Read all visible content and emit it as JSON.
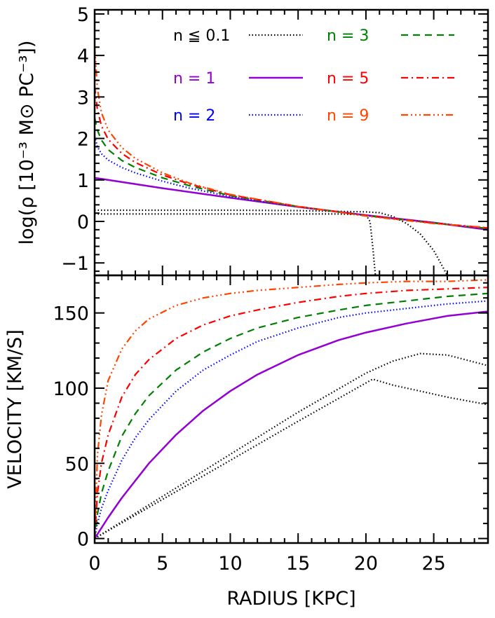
{
  "chart_data": [
    {
      "type": "line",
      "ylabel": "log(ρ [10⁻³ M⊙ PC⁻³])",
      "xlabel": "",
      "xlim": [
        0,
        29
      ],
      "ylim": [
        -1.3,
        5.1
      ],
      "xticks": [
        0,
        5,
        10,
        15,
        20,
        25
      ],
      "yticks": [
        -1,
        0,
        1,
        2,
        3,
        4,
        5
      ],
      "ytick_labels": [
        "−1",
        "0",
        "1",
        "2",
        "3",
        "4",
        "5"
      ],
      "legend": [
        {
          "label": "n ≦ 0.1",
          "color": "#000000",
          "style": "dotted"
        },
        {
          "label": "n = 1",
          "color": "#9400D3",
          "style": "solid"
        },
        {
          "label": "n = 2",
          "color": "#0000FF",
          "style": "dotted"
        },
        {
          "label": "n = 3",
          "color": "#008000",
          "style": "dashed"
        },
        {
          "label": "n = 5",
          "color": "#FF0000",
          "style": "dashdot"
        },
        {
          "label": "n = 9",
          "color": "#FF4500",
          "style": "dashdotdotdot"
        }
      ],
      "series": [
        {
          "name": "n ≦ 0.1",
          "color": "#000000",
          "style": "dotted",
          "x": [
            0,
            5,
            10,
            15,
            18,
            20,
            20.3,
            20.5,
            20.7
          ],
          "y": [
            0.18,
            0.18,
            0.18,
            0.18,
            0.18,
            0.16,
            0.0,
            -0.6,
            -1.3
          ]
        },
        {
          "name": "n ≦ 0.1",
          "color": "#000000",
          "style": "dotted",
          "x": [
            0,
            5,
            10,
            15,
            20,
            21,
            22,
            23,
            24,
            25,
            26
          ],
          "y": [
            0.27,
            0.27,
            0.27,
            0.26,
            0.23,
            0.21,
            0.12,
            -0.05,
            -0.3,
            -0.7,
            -1.3
          ]
        },
        {
          "name": "n = 1",
          "color": "#9400D3",
          "style": "solid",
          "x": [
            0,
            5,
            10,
            15,
            20,
            25,
            29
          ],
          "y": [
            1.05,
            0.8,
            0.57,
            0.35,
            0.15,
            -0.03,
            -0.2
          ]
        },
        {
          "name": "n = 2",
          "color": "#0000FF",
          "style": "dotted",
          "x": [
            0,
            0.2,
            0.5,
            1,
            2,
            3,
            5,
            7,
            10,
            15,
            20,
            25,
            29
          ],
          "y": [
            2.05,
            1.8,
            1.63,
            1.48,
            1.3,
            1.17,
            0.97,
            0.8,
            0.6,
            0.35,
            0.14,
            -0.03,
            -0.17
          ]
        },
        {
          "name": "n = 3",
          "color": "#008000",
          "style": "dashed",
          "x": [
            0,
            0.2,
            0.5,
            1,
            2,
            3,
            5,
            7,
            10,
            15,
            20,
            25,
            29
          ],
          "y": [
            2.5,
            2.2,
            1.96,
            1.73,
            1.47,
            1.3,
            1.05,
            0.86,
            0.62,
            0.36,
            0.14,
            -0.04,
            -0.17
          ]
        },
        {
          "name": "n = 5",
          "color": "#FF0000",
          "style": "dashdot",
          "x": [
            0,
            0.2,
            0.5,
            1,
            2,
            3,
            5,
            7,
            10,
            15,
            20,
            25,
            29
          ],
          "y": [
            3.25,
            2.7,
            2.3,
            1.98,
            1.64,
            1.42,
            1.12,
            0.9,
            0.64,
            0.36,
            0.14,
            -0.04,
            -0.16
          ]
        },
        {
          "name": "n = 9",
          "color": "#FF4500",
          "style": "dashdotdotdot",
          "x": [
            0,
            0.2,
            0.5,
            1,
            2,
            3,
            5,
            7,
            10,
            15,
            20,
            25,
            29
          ],
          "y": [
            4.2,
            3.2,
            2.62,
            2.2,
            1.78,
            1.52,
            1.17,
            0.92,
            0.65,
            0.36,
            0.13,
            -0.05,
            -0.15
          ]
        }
      ]
    },
    {
      "type": "line",
      "xlabel": "RADIUS [KPC]",
      "ylabel": "VELOCITY [KM/S]",
      "xlim": [
        0,
        29
      ],
      "ylim": [
        -3,
        175
      ],
      "xticks": [
        0,
        5,
        10,
        15,
        20,
        25
      ],
      "yticks": [
        0,
        50,
        100,
        150
      ],
      "series": [
        {
          "name": "n ≦ 0.1",
          "color": "#000000",
          "style": "dotted",
          "x": [
            0,
            5,
            10,
            15,
            20.5,
            22,
            24,
            26,
            29
          ],
          "y": [
            0,
            26,
            52,
            78,
            106,
            102,
            98,
            94,
            89
          ]
        },
        {
          "name": "n ≦ 0.1",
          "color": "#000000",
          "style": "dotted",
          "x": [
            0,
            5,
            10,
            15,
            20,
            22,
            24,
            26,
            29
          ],
          "y": [
            0,
            28,
            56,
            84,
            110,
            118,
            123,
            122,
            115
          ]
        },
        {
          "name": "n = 1",
          "color": "#9400D3",
          "style": "solid",
          "x": [
            0,
            1,
            2,
            4,
            6,
            8,
            10,
            12,
            15,
            18,
            20,
            23,
            26,
            29
          ],
          "y": [
            0,
            14,
            27,
            50,
            69,
            85,
            98,
            109,
            122,
            132,
            137,
            143,
            148,
            151
          ]
        },
        {
          "name": "n = 2",
          "color": "#0000FF",
          "style": "dotted",
          "x": [
            0,
            0.2,
            0.5,
            1,
            2,
            3,
            4,
            6,
            8,
            10,
            12,
            15,
            18,
            20,
            23,
            26,
            29
          ],
          "y": [
            0,
            10,
            20,
            32,
            52,
            67,
            79,
            98,
            112,
            122,
            131,
            140,
            147,
            150,
            153,
            156,
            158
          ]
        },
        {
          "name": "n = 3",
          "color": "#008000",
          "style": "dashed",
          "x": [
            0,
            0.2,
            0.5,
            1,
            2,
            3,
            4,
            6,
            8,
            10,
            12,
            15,
            18,
            20,
            23,
            26,
            29
          ],
          "y": [
            0,
            16,
            30,
            45,
            68,
            83,
            95,
            112,
            124,
            133,
            140,
            147,
            152,
            155,
            158,
            161,
            163
          ]
        },
        {
          "name": "n = 5",
          "color": "#FF0000",
          "style": "dashdot",
          "x": [
            0,
            0.2,
            0.5,
            1,
            2,
            3,
            4,
            6,
            8,
            10,
            12,
            15,
            18,
            20,
            23,
            26,
            29
          ],
          "y": [
            0,
            30,
            50,
            69,
            94,
            109,
            119,
            133,
            142,
            148,
            152,
            157,
            161,
            163,
            165,
            166,
            167
          ]
        },
        {
          "name": "n = 9",
          "color": "#FF4500",
          "style": "dashdotdotdot",
          "x": [
            0,
            0.2,
            0.5,
            1,
            2,
            3,
            4,
            6,
            8,
            10,
            12,
            15,
            18,
            20,
            23,
            26,
            29
          ],
          "y": [
            0,
            55,
            82,
            105,
            126,
            138,
            146,
            155,
            160,
            163,
            165,
            167,
            169,
            170,
            171,
            171,
            172
          ]
        }
      ]
    }
  ]
}
